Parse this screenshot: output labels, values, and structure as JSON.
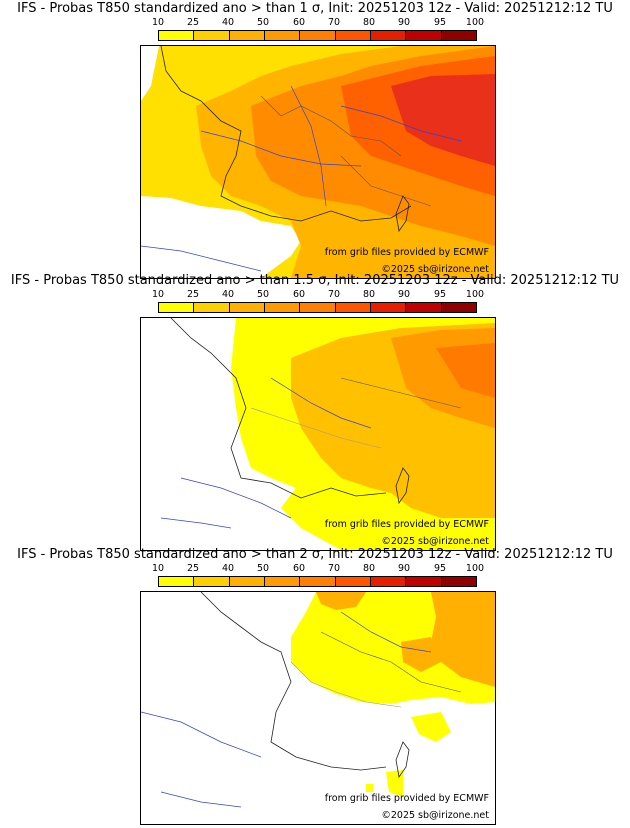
{
  "colorbar": {
    "ticks": [
      "10",
      "25",
      "40",
      "50",
      "60",
      "70",
      "80",
      "90",
      "95",
      "100"
    ],
    "colors": [
      "#ffff00",
      "#ffd000",
      "#ffb000",
      "#ff9a00",
      "#ff8000",
      "#ff5500",
      "#e81e00",
      "#c00000",
      "#900000",
      "#600000"
    ]
  },
  "panels": [
    {
      "title": "IFS - Probas T850  standardized ano > than 1 σ, Init: 20251203 12z - Valid: 20251212:12 TU",
      "threshold_sigma": 1,
      "source": "from grib files provided by ECMWF",
      "copyright": "©2025 sb@irizone.net"
    },
    {
      "title": "IFS - Probas T850  standardized ano > than 1.5 σ, Init: 20251203 12z - Valid: 20251212:12 TU",
      "threshold_sigma": 1.5,
      "source": "from grib files provided by ECMWF",
      "copyright": "©2025 sb@irizone.net"
    },
    {
      "title": "IFS - Probas T850  standardized ano > than 2 σ, Init: 20251203 12z - Valid: 20251212:12 TU",
      "threshold_sigma": 2,
      "source": "from grib files provided by ECMWF",
      "copyright": "©2025 sb@irizone.net"
    }
  ]
}
